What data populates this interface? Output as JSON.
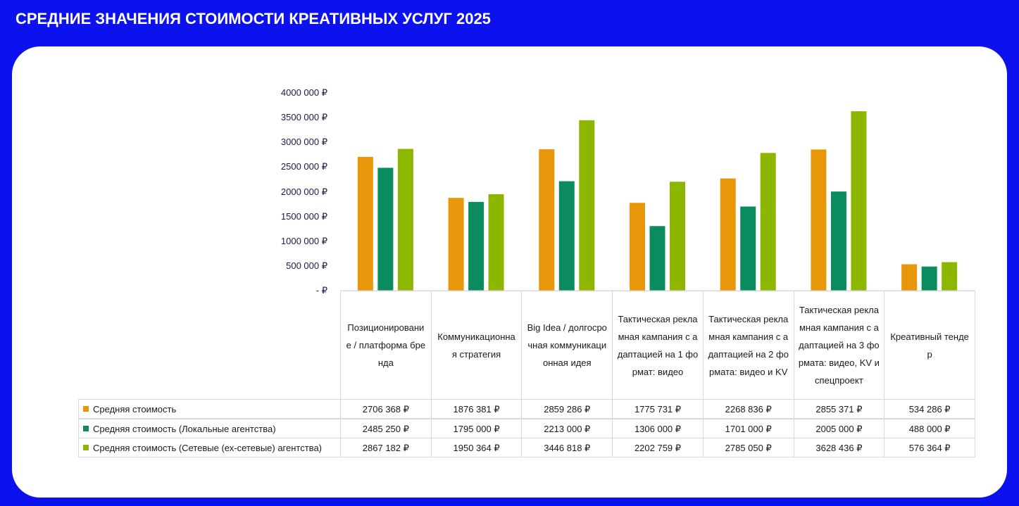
{
  "title": "СРЕДНИЕ ЗНАЧЕНИЯ СТОИМОСТИ КРЕАТИВНЫХ УСЛУГ 2025",
  "chart_data": {
    "type": "bar",
    "categories": [
      "Позиционирование / платформа бренда",
      "Коммуникационная стратегия",
      "Big Idea / долгосрочная коммуникационная идея",
      "Тактическая рекламная кампания с адаптацией на 1 формат: видео",
      "Тактическая рекламная кампания с адаптацией на 2 формата: видео и KV",
      "Тактическая рекламная кампания с адаптацией на 3 формата: видео, KV и спецпроект",
      "Креативный тендер"
    ],
    "series": [
      {
        "name": "Средняя стоимость",
        "color": "#e8960a",
        "values": [
          2706368,
          1876381,
          2859286,
          1775731,
          2268836,
          2855371,
          534286
        ],
        "value_labels": [
          "2706 368 ₽",
          "1876 381 ₽",
          "2859 286 ₽",
          "1775 731 ₽",
          "2268 836 ₽",
          "2855 371 ₽",
          "534 286 ₽"
        ]
      },
      {
        "name": "Средняя стоимость (Локальные агентства)",
        "color": "#0a8c5f",
        "values": [
          2485250,
          1795000,
          2213000,
          1306000,
          1701000,
          2005000,
          488000
        ],
        "value_labels": [
          "2485 250 ₽",
          "1795 000 ₽",
          "2213 000 ₽",
          "1306 000 ₽",
          "1701 000 ₽",
          "2005 000 ₽",
          "488 000 ₽"
        ]
      },
      {
        "name": "Средняя стоимость (Сетевые (ех-сетевые) агентства)",
        "color": "#8db600",
        "values": [
          2867182,
          1950364,
          3446818,
          2202759,
          2785050,
          3628436,
          576364
        ],
        "value_labels": [
          "2867 182 ₽",
          "1950 364 ₽",
          "3446 818 ₽",
          "2202 759 ₽",
          "2785 050 ₽",
          "3628 436 ₽",
          "576 364 ₽"
        ]
      }
    ],
    "ylim": [
      0,
      4000000
    ],
    "yticks": [
      {
        "value": 0,
        "label": "-  ₽"
      },
      {
        "value": 500000,
        "label": "500 000 ₽"
      },
      {
        "value": 1000000,
        "label": "1000 000 ₽"
      },
      {
        "value": 1500000,
        "label": "1500 000 ₽"
      },
      {
        "value": 2000000,
        "label": "2000 000 ₽"
      },
      {
        "value": 2500000,
        "label": "2500 000 ₽"
      },
      {
        "value": 3000000,
        "label": "3000 000 ₽"
      },
      {
        "value": 3500000,
        "label": "3500 000 ₽"
      },
      {
        "value": 4000000,
        "label": "4000 000 ₽"
      }
    ],
    "grid": false
  }
}
